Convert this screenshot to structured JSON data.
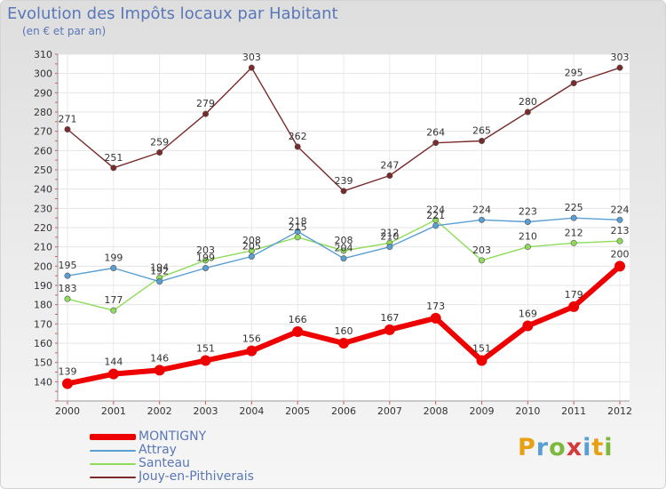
{
  "header": {
    "title": "Evolution des Impôts locaux par Habitant",
    "subtitle": "(en € et par an)"
  },
  "logo": {
    "text": "Proxiti",
    "colors": [
      "#e8a013",
      "#5a9fd4",
      "#7cb83a",
      "#d43a3a",
      "#5a9fd4",
      "#e8a013",
      "#7cb83a"
    ]
  },
  "chart_data": {
    "type": "line",
    "title": "Evolution des Impôts locaux par Habitant",
    "subtitle": "(en € et par an)",
    "xlabel": "",
    "ylabel": "",
    "x": [
      "2000",
      "2001",
      "2002",
      "2003",
      "2004",
      "2005",
      "2006",
      "2007",
      "2008",
      "2009",
      "2010",
      "2011",
      "2012"
    ],
    "ylim": [
      130,
      310
    ],
    "yticks": [
      140,
      150,
      160,
      170,
      180,
      190,
      200,
      210,
      220,
      230,
      240,
      250,
      260,
      270,
      280,
      290,
      300,
      310
    ],
    "grid": true,
    "legend_position": "bottom-left",
    "series": [
      {
        "name": "MONTIGNY",
        "color": "#ee0000",
        "values": [
          139,
          144,
          146,
          151,
          156,
          166,
          160,
          167,
          173,
          151,
          169,
          179,
          200
        ]
      },
      {
        "name": "Attray",
        "color": "#5a9fd4",
        "values": [
          195,
          199,
          192,
          199,
          205,
          218,
          204,
          210,
          221,
          224,
          223,
          225,
          224
        ]
      },
      {
        "name": "Santeau",
        "color": "#8fdc5a",
        "values": [
          183,
          177,
          194,
          203,
          208,
          215,
          208,
          212,
          224,
          203,
          210,
          212,
          213
        ]
      },
      {
        "name": "Jouy-en-Pithiverais",
        "color": "#7a2a2a",
        "values": [
          271,
          251,
          259,
          279,
          303,
          262,
          239,
          247,
          264,
          265,
          280,
          295,
          303
        ]
      }
    ],
    "data_labels": [
      {
        "series": "MONTIGNY",
        "values": [
          "139",
          "144",
          "146",
          "151",
          "156",
          "166",
          "160",
          "167",
          "173",
          "151",
          "169",
          "179",
          "200"
        ]
      },
      {
        "series": "Attray",
        "values": [
          "195",
          "199",
          "192",
          "199",
          "205",
          "218",
          "204",
          "210",
          "221",
          "224",
          "223",
          "225",
          "224"
        ]
      },
      {
        "series": "Santeau",
        "values": [
          "183",
          "177",
          "194",
          "203",
          "208",
          "215",
          "208",
          "212",
          "224",
          "203",
          "210",
          "212",
          "213"
        ]
      },
      {
        "series": "Jouy-en-Pithiverais",
        "values": [
          "271",
          "251",
          "259",
          "279",
          "303",
          "262",
          "239",
          "247",
          "264",
          "265",
          "280",
          "295",
          "303"
        ]
      }
    ]
  }
}
